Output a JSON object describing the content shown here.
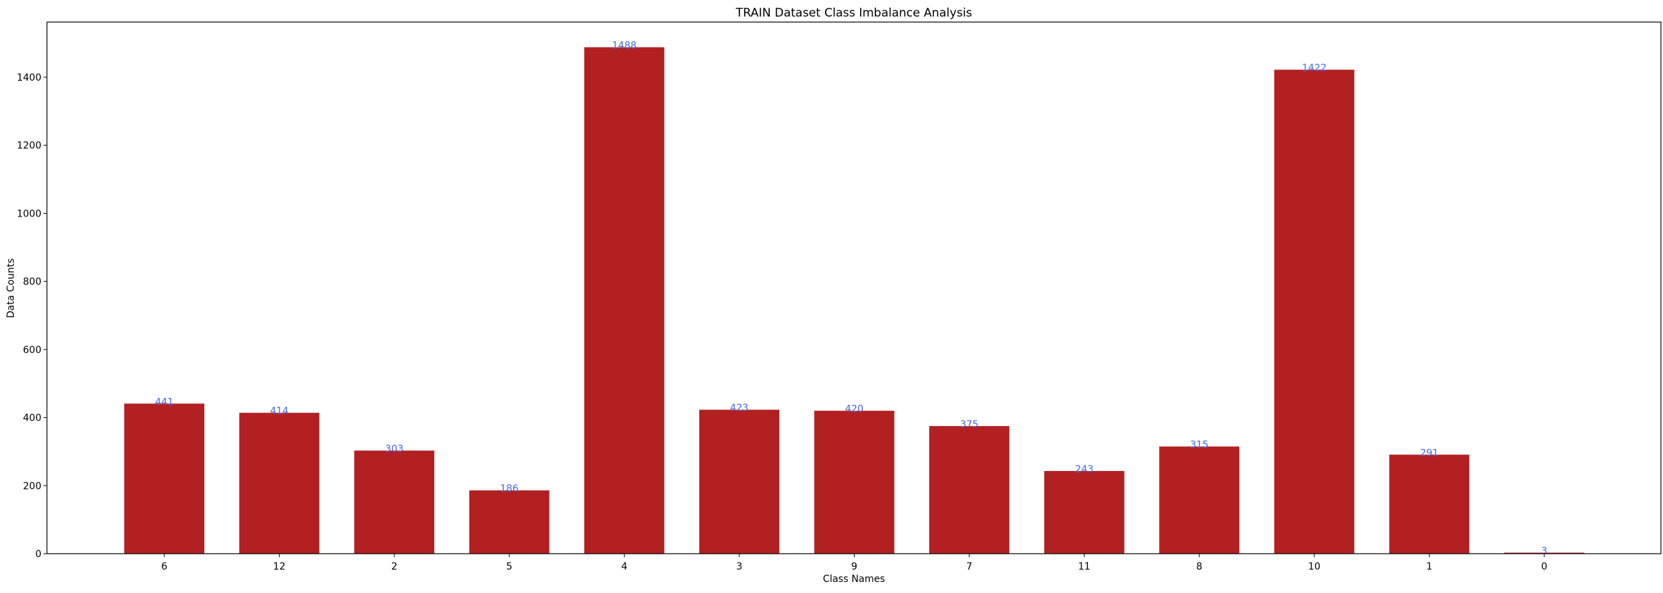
{
  "chart_data": {
    "type": "bar",
    "title": "TRAIN Dataset Class Imbalance Analysis",
    "xlabel": "Class Names",
    "ylabel": "Data Counts",
    "categories": [
      "6",
      "12",
      "2",
      "5",
      "4",
      "3",
      "9",
      "7",
      "11",
      "8",
      "10",
      "1",
      "0"
    ],
    "values": [
      441,
      414,
      303,
      186,
      1488,
      423,
      420,
      375,
      243,
      315,
      1422,
      291,
      3
    ],
    "ylim": [
      0,
      1562
    ],
    "yticks": [
      0,
      200,
      400,
      600,
      800,
      1000,
      1200,
      1400
    ],
    "bar_color": "#b22022",
    "label_color": "#4169e1",
    "grid": false,
    "legend": "none"
  }
}
